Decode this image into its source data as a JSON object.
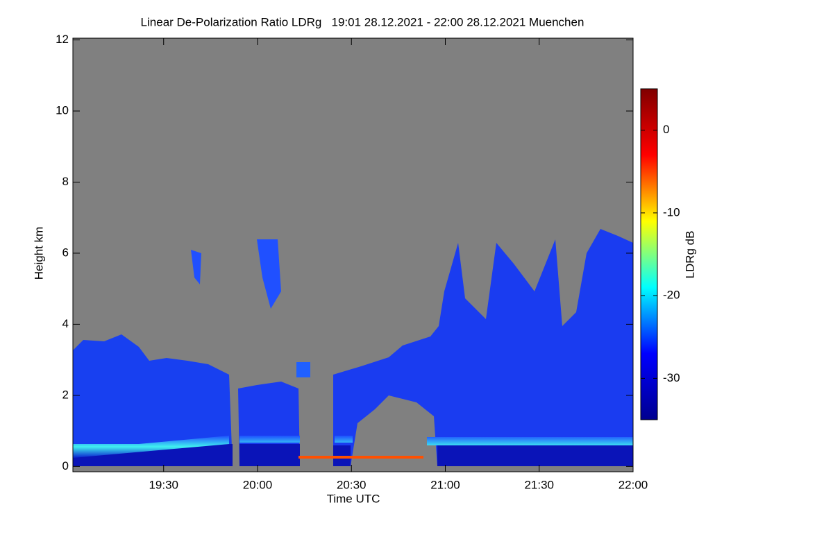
{
  "chart_data": {
    "type": "heatmap",
    "title": "Linear De-Polarization Ratio LDRg   19:01 28.12.2021 - 22:00 28.12.2021 Muenchen",
    "x_label": "Time UTC",
    "y_label": "Height km",
    "xlim": [
      1141,
      1320
    ],
    "xticks": [
      {
        "value": 1170,
        "label": "19:30"
      },
      {
        "value": 1200,
        "label": "20:00"
      },
      {
        "value": 1230,
        "label": "20:30"
      },
      {
        "value": 1260,
        "label": "21:00"
      },
      {
        "value": 1290,
        "label": "21:30"
      },
      {
        "value": 1320,
        "label": "22:00"
      }
    ],
    "ylim": [
      -0.15,
      12.05
    ],
    "yticks": [
      0,
      2,
      4,
      6,
      8,
      10,
      12
    ],
    "colorbar": {
      "label": "LDRg dB",
      "lim": [
        -35,
        5
      ],
      "ticks": [
        0,
        -10,
        -20,
        -30
      ],
      "colors": [
        "#00008f",
        "#0000ff",
        "#00ffff",
        "#ffff00",
        "#ff0000",
        "#800000"
      ]
    }
  }
}
